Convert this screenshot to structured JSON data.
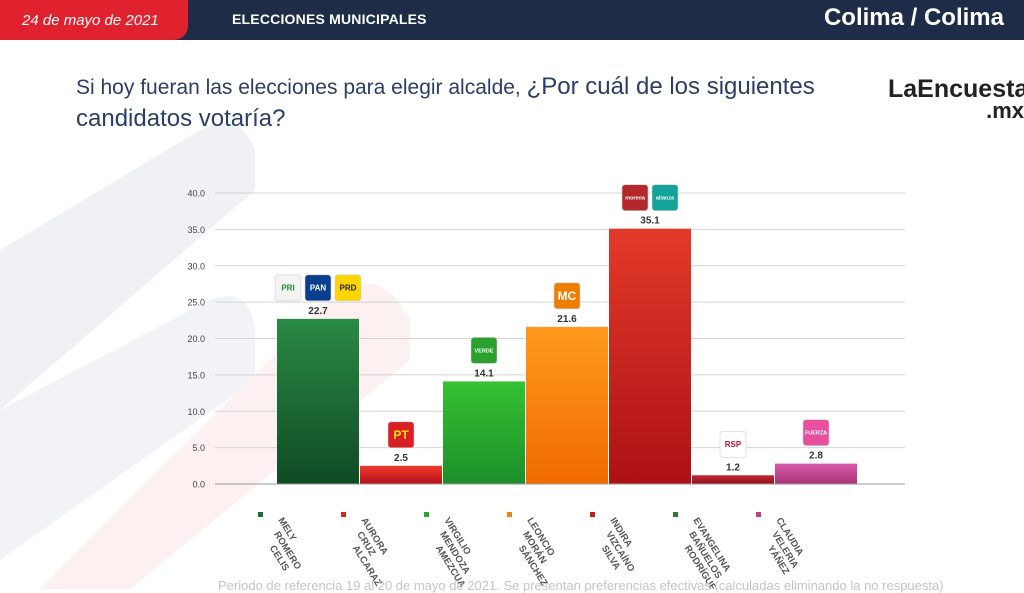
{
  "header": {
    "date": "24 de mayo de 2021",
    "section": "ELECCIONES MUNICIPALES",
    "location": "Colima / Colima"
  },
  "question": {
    "part1": "Si hoy fueran las elecciones para elegir alcalde, ",
    "part2": "¿Por cuál de los siguientes candidatos votaría?"
  },
  "brand": {
    "line1": "LaEncuesta",
    "line2": ".mx"
  },
  "footnote": "Periodo de referencia 19 al 20 de mayo de 2021. Se presentan preferencias efectivas (calculadas eliminando la no respuesta)",
  "colors": {
    "header_bg": "#1e2c48",
    "date_bg": "#e0212e",
    "question": "#2b3e63"
  },
  "chart_data": {
    "type": "bar",
    "ylim": [
      0,
      40
    ],
    "yticks": [
      "0.0",
      "5.0",
      "10.0",
      "15.0",
      "20.0",
      "25.0",
      "30.0",
      "35.0",
      "40.0"
    ],
    "categories": [
      [
        "MELY",
        "ROMERO",
        "CELIS"
      ],
      [
        "AURORA",
        "CRUZ",
        "ALCARAZ"
      ],
      [
        "VIRGILIO",
        "MENDOZA",
        "AMEZCUA"
      ],
      [
        "LEONCIO",
        "MORÁN",
        "SÁNCHEZ"
      ],
      [
        "INDIRA",
        "VIZCAÍNO",
        "SILVA"
      ],
      [
        "EVANGELINA",
        "BAÑUELOS",
        "RODRÍGUEZ"
      ],
      [
        "CLAUDIA",
        "VELERIA",
        "YÁÑEZ"
      ]
    ],
    "values": [
      22.7,
      2.5,
      14.1,
      21.6,
      35.1,
      1.2,
      2.8
    ],
    "value_labels": [
      "22.7",
      "2.5",
      "14.1",
      "21.6",
      "35.1",
      "1.2",
      "2.8"
    ],
    "bar_colors": [
      [
        "#2a8a46",
        "#0f4a23"
      ],
      [
        "#ee3b2d",
        "#b5121b"
      ],
      [
        "#34c232",
        "#1d8f2a"
      ],
      [
        "#ff9a1e",
        "#f06a00"
      ],
      [
        "#e33a2a",
        "#ac1115"
      ],
      [
        "#c72a33",
        "#8e1018"
      ],
      [
        "#d95aa8",
        "#aa3276"
      ]
    ],
    "legend_colors": [
      "#1b6b35",
      "#d5261f",
      "#2ca52e",
      "#f57f12",
      "#c91d1d",
      "#2f7a3b",
      "#c43a86"
    ],
    "logos": [
      [
        {
          "text": "PRI",
          "color": "#1a8a3c",
          "bg": "#f4f4f4"
        },
        {
          "text": "PAN",
          "color": "#fff",
          "bg": "#0a3f8f"
        },
        {
          "text": "PRD",
          "color": "#222",
          "bg": "#ffd500"
        }
      ],
      [
        {
          "text": "PT",
          "color": "#ffe000",
          "bg": "#d81f26"
        }
      ],
      [
        {
          "text": "VERDE",
          "color": "#fff",
          "bg": "#2aa02e"
        }
      ],
      [
        {
          "text": "MC",
          "color": "#fff",
          "bg": "#ef7d00"
        }
      ],
      [
        {
          "text": "morena",
          "color": "#fff",
          "bg": "#b3282d"
        },
        {
          "text": "alianza",
          "color": "#fff",
          "bg": "#14a39b"
        }
      ],
      [
        {
          "text": "RSP",
          "color": "#c8102e",
          "bg": "#ffffff"
        }
      ],
      [
        {
          "text": "FUERZA",
          "color": "#fff",
          "bg": "#e8509d"
        }
      ]
    ]
  }
}
